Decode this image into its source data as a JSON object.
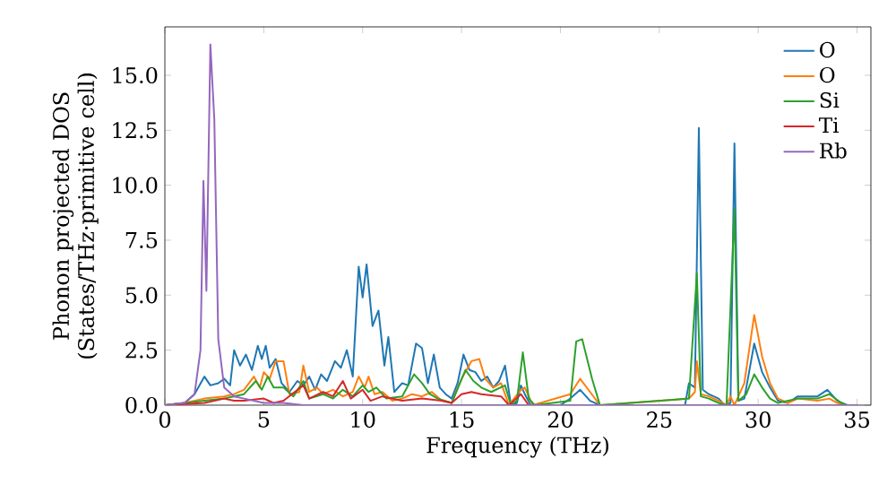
{
  "chart_data": {
    "type": "line",
    "xlabel": "Frequency (THz)",
    "ylabel": "Phonon projected DOS (States/THz·primitive cell)",
    "xlim": [
      0,
      35.7
    ],
    "ylim": [
      0,
      17.2
    ],
    "xticks": [
      0,
      5,
      10,
      15,
      20,
      25,
      30,
      35
    ],
    "yticks": [
      {
        "value": 0,
        "label": "0.0"
      },
      {
        "value": 2.5,
        "label": "2.5"
      },
      {
        "value": 5,
        "label": "5.0"
      },
      {
        "value": 7.5,
        "label": "7.5"
      },
      {
        "value": 10,
        "label": "10.0"
      },
      {
        "value": 12.5,
        "label": "12.5"
      },
      {
        "value": 15,
        "label": "15.0"
      }
    ],
    "legend": "top right",
    "series": [
      {
        "name": "O",
        "color": "#1f77b4",
        "x": [
          0,
          1,
          1.5,
          2,
          2.3,
          2.7,
          3,
          3.3,
          3.5,
          3.8,
          4.1,
          4.4,
          4.7,
          4.9,
          5.1,
          5.3,
          5.6,
          5.9,
          6.3,
          6.7,
          7,
          7.3,
          7.6,
          7.9,
          8.2,
          8.6,
          8.9,
          9.2,
          9.5,
          9.8,
          10,
          10.2,
          10.5,
          10.8,
          11.1,
          11.3,
          11.6,
          12,
          12.3,
          12.7,
          13,
          13.3,
          13.6,
          13.9,
          14.2,
          14.5,
          14.8,
          15.1,
          15.4,
          15.7,
          16,
          16.3,
          16.6,
          16.9,
          17.2,
          17.5,
          17.8,
          18,
          18.2,
          18.5,
          20,
          20.5,
          21,
          21.5,
          22,
          26.3,
          26.5,
          26.8,
          27,
          27.2,
          27.5,
          28,
          28.3,
          28.6,
          28.8,
          29,
          29.3,
          29.8,
          30.2,
          30.6,
          31,
          31.5,
          32,
          33,
          33.5,
          34,
          34.5,
          35
        ],
        "values": [
          0,
          0.1,
          0.5,
          1.3,
          0.9,
          1.0,
          1.2,
          0.9,
          2.5,
          1.8,
          2.3,
          1.6,
          2.7,
          2.1,
          2.7,
          1.7,
          2.1,
          1.0,
          0.6,
          1.1,
          0.9,
          1.3,
          0.7,
          1.4,
          1.1,
          2.0,
          1.7,
          2.5,
          1.3,
          6.3,
          4.9,
          6.4,
          3.6,
          4.3,
          1.8,
          3.1,
          0.6,
          1.0,
          0.9,
          2.8,
          2.6,
          1.0,
          2.3,
          0.8,
          0.5,
          0.3,
          1.0,
          2.3,
          1.6,
          1.5,
          1.1,
          1.3,
          0.8,
          1.1,
          1.8,
          0,
          0.1,
          0.9,
          0.5,
          0,
          0,
          0.3,
          0.7,
          0.2,
          0,
          0,
          1.0,
          0.8,
          12.6,
          0.7,
          0.5,
          0.3,
          0,
          0.1,
          11.9,
          0.2,
          0.3,
          2.8,
          1.5,
          0.8,
          0.2,
          0.1,
          0.4,
          0.4,
          0.7,
          0.2,
          0,
          0
        ]
      },
      {
        "name": "O",
        "color": "#ff7f0e",
        "x": [
          0,
          1,
          2,
          3,
          3.5,
          4,
          4.5,
          4.8,
          5,
          5.3,
          5.6,
          6,
          6.3,
          6.8,
          7,
          7.3,
          7.7,
          8,
          8.5,
          9,
          9.5,
          9.8,
          10.1,
          10.3,
          10.6,
          11,
          11.5,
          12,
          12.5,
          13,
          13.5,
          14,
          14.5,
          15,
          15.5,
          15.9,
          16.2,
          16.6,
          17,
          17.4,
          18,
          18.2,
          18.6,
          20.5,
          21,
          21.5,
          22,
          26.5,
          26.8,
          26.9,
          27.1,
          27.5,
          28,
          28.4,
          28.6,
          28.8,
          29.3,
          29.8,
          30.2,
          30.6,
          31,
          31.5,
          32,
          33,
          33.6,
          34,
          34.5,
          35
        ],
        "values": [
          0,
          0.1,
          0.3,
          0.4,
          0.5,
          0.7,
          1.3,
          0.8,
          1.5,
          1.2,
          2.0,
          2.0,
          0.5,
          0.6,
          1.8,
          0.6,
          0.8,
          0.5,
          0.7,
          0.4,
          0.6,
          1.3,
          0.8,
          1.3,
          0.5,
          0.6,
          0.2,
          0.3,
          0.5,
          0.4,
          0.6,
          0.2,
          0.1,
          1.2,
          2.0,
          2.1,
          1.2,
          0.8,
          1.0,
          0,
          0.7,
          0.8,
          0,
          0.5,
          1.2,
          0.6,
          0,
          0.3,
          0.6,
          2.0,
          0.5,
          0.4,
          0.2,
          0,
          0.4,
          0,
          1.0,
          4.1,
          2.2,
          1.0,
          0.3,
          0.1,
          0.3,
          0.2,
          0.3,
          0.1,
          0,
          0
        ]
      },
      {
        "name": "Si",
        "color": "#2ca02c",
        "x": [
          0,
          2,
          3,
          4,
          4.6,
          4.9,
          5.2,
          5.5,
          6,
          6.5,
          7,
          7.3,
          8,
          8.5,
          9,
          9.5,
          10,
          10.3,
          10.7,
          11.2,
          12,
          12.6,
          13,
          13.4,
          13.8,
          14.5,
          15.2,
          15.6,
          16,
          16.5,
          17.2,
          17.5,
          17.8,
          18.1,
          18.4,
          18.7,
          20.5,
          20.8,
          21.1,
          21.6,
          22,
          26.5,
          26.9,
          27.1,
          27.5,
          28,
          28.4,
          28.8,
          29,
          29.4,
          29.8,
          30.2,
          30.6,
          31,
          32,
          33,
          33.6,
          34.2,
          34.5,
          35
        ],
        "values": [
          0,
          0.2,
          0.3,
          0.5,
          1.1,
          0.7,
          1.3,
          0.8,
          0.8,
          0.4,
          1.1,
          0.3,
          0.5,
          0.3,
          0.7,
          0.4,
          0.9,
          0.6,
          0.8,
          0.3,
          0.4,
          1.4,
          1.0,
          0.5,
          0.3,
          0.1,
          1.6,
          1.1,
          0.8,
          0.6,
          0.9,
          0,
          0.2,
          2.4,
          0.3,
          0,
          0.2,
          2.9,
          3.0,
          1.2,
          0,
          0.3,
          6.0,
          0.4,
          0.3,
          0.1,
          0,
          8.9,
          0.2,
          0.5,
          1.4,
          0.8,
          0.3,
          0.1,
          0.3,
          0.3,
          0.5,
          0.1,
          0,
          0
        ]
      },
      {
        "name": "Ti",
        "color": "#d62728",
        "x": [
          0,
          2,
          3,
          3.5,
          4,
          5,
          5.5,
          6,
          7,
          7.3,
          8,
          8.5,
          9,
          9.4,
          10,
          10.4,
          11,
          12,
          13,
          14,
          14.5,
          15,
          15.5,
          16,
          17,
          17.4,
          18,
          18.4,
          35
        ],
        "values": [
          0,
          0.1,
          0.3,
          0.2,
          0.2,
          0.3,
          0.1,
          0.2,
          0.9,
          0.3,
          0.6,
          0.4,
          1.1,
          0.3,
          0.7,
          0.2,
          0.4,
          0.2,
          0.3,
          0.2,
          0.1,
          0.5,
          0.6,
          0.5,
          0.4,
          0,
          0.5,
          0,
          0
        ]
      },
      {
        "name": "Rb",
        "color": "#9467bd",
        "x": [
          0,
          1,
          1.5,
          1.8,
          1.95,
          2.1,
          2.3,
          2.5,
          2.7,
          3,
          3.5,
          4,
          5,
          6,
          7,
          35
        ],
        "values": [
          0,
          0.1,
          0.5,
          2.5,
          10.2,
          5.2,
          16.4,
          13,
          3,
          0.8,
          0.4,
          0.3,
          0.1,
          0.1,
          0,
          0
        ]
      }
    ]
  }
}
